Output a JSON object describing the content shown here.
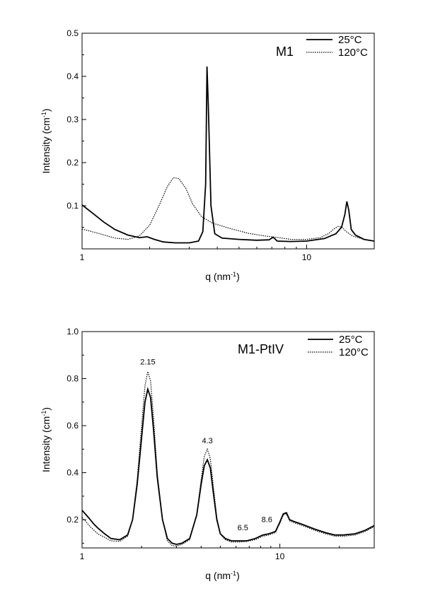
{
  "chart_data": [
    {
      "type": "line",
      "title": "M1",
      "xlabel": "q (nm",
      "xlabel_sup": "-1",
      "xlabel_end": ")",
      "ylabel": "Intensity (cm",
      "ylabel_sup": "-1",
      "ylabel_end": ")",
      "xscale": "log",
      "xlim": [
        1,
        20
      ],
      "ylim": [
        0,
        0.5
      ],
      "grid": false,
      "legend_position": "top-right",
      "x_ticks": [
        {
          "value": 1,
          "label": "1"
        },
        {
          "value": 10,
          "label": "10"
        }
      ],
      "y_ticks": [
        {
          "value": 0.1,
          "label": "0.1"
        },
        {
          "value": 0.2,
          "label": "0.2"
        },
        {
          "value": 0.3,
          "label": "0.3"
        },
        {
          "value": 0.4,
          "label": "0.4"
        },
        {
          "value": 0.5,
          "label": "0.5"
        }
      ],
      "annotations": [],
      "series": [
        {
          "name": "25°C",
          "style": "solid",
          "x": [
            1.0,
            1.1,
            1.25,
            1.4,
            1.6,
            1.8,
            1.95,
            2.1,
            2.3,
            2.6,
            3.0,
            3.3,
            3.45,
            3.55,
            3.6,
            3.65,
            3.75,
            3.9,
            4.2,
            5.0,
            6.0,
            6.8,
            7.1,
            7.4,
            8.5,
            10.0,
            12.0,
            13.5,
            14.3,
            14.8,
            15.1,
            15.4,
            15.8,
            16.5,
            18.0,
            20.0
          ],
          "y": [
            0.102,
            0.085,
            0.062,
            0.045,
            0.032,
            0.026,
            0.028,
            0.022,
            0.016,
            0.014,
            0.014,
            0.018,
            0.04,
            0.15,
            0.423,
            0.33,
            0.1,
            0.035,
            0.025,
            0.022,
            0.02,
            0.021,
            0.027,
            0.018,
            0.017,
            0.018,
            0.024,
            0.035,
            0.05,
            0.08,
            0.11,
            0.09,
            0.045,
            0.032,
            0.022,
            0.018
          ]
        },
        {
          "name": "120°C",
          "style": "dotted",
          "x": [
            1.0,
            1.2,
            1.4,
            1.6,
            1.8,
            2.0,
            2.2,
            2.4,
            2.55,
            2.7,
            2.9,
            3.1,
            3.4,
            3.8,
            4.5,
            5.5,
            6.5,
            7.5,
            8.5,
            10.0,
            11.5,
            12.5,
            13.3,
            13.8,
            14.4,
            15.0,
            16.0,
            18.0,
            20.0
          ],
          "y": [
            0.046,
            0.035,
            0.025,
            0.022,
            0.03,
            0.055,
            0.1,
            0.145,
            0.165,
            0.163,
            0.14,
            0.105,
            0.075,
            0.06,
            0.048,
            0.036,
            0.03,
            0.026,
            0.022,
            0.022,
            0.026,
            0.035,
            0.047,
            0.052,
            0.05,
            0.04,
            0.03,
            0.022,
            0.018
          ]
        }
      ]
    },
    {
      "type": "line",
      "title": "M1-PtIV",
      "xlabel": "q (nm",
      "xlabel_sup": "-1",
      "xlabel_end": ")",
      "ylabel": "Intensity (cm",
      "ylabel_sup": "-1",
      "ylabel_end": ")",
      "xscale": "log",
      "xlim": [
        1,
        30
      ],
      "ylim": [
        0.08,
        1.0
      ],
      "grid": false,
      "legend_position": "top-right",
      "x_ticks": [
        {
          "value": 1,
          "label": "1"
        },
        {
          "value": 10,
          "label": "10"
        }
      ],
      "y_ticks": [
        {
          "value": 0.2,
          "label": "0.2"
        },
        {
          "value": 0.4,
          "label": "0.4"
        },
        {
          "value": 0.6,
          "label": "0.6"
        },
        {
          "value": 0.8,
          "label": "0.8"
        },
        {
          "value": 1.0,
          "label": "1.0"
        }
      ],
      "annotations": [
        {
          "text": "2.15",
          "x": 2.15,
          "y": 0.86
        },
        {
          "text": "4.3",
          "x": 4.3,
          "y": 0.525
        },
        {
          "text": "6.5",
          "x": 6.5,
          "y": 0.155
        },
        {
          "text": "8.6",
          "x": 8.6,
          "y": 0.19
        }
      ],
      "series": [
        {
          "name": "25°C",
          "style": "solid",
          "x": [
            1.0,
            1.05,
            1.1,
            1.15,
            1.2,
            1.3,
            1.4,
            1.55,
            1.7,
            1.8,
            1.9,
            2.0,
            2.08,
            2.15,
            2.22,
            2.3,
            2.4,
            2.55,
            2.7,
            2.85,
            3.0,
            3.2,
            3.5,
            3.8,
            4.0,
            4.15,
            4.3,
            4.45,
            4.6,
            4.8,
            5.0,
            5.3,
            5.7,
            6.2,
            6.8,
            7.5,
            8.2,
            8.8,
            9.5,
            10.0,
            10.4,
            10.8,
            11.2,
            12.0,
            13.0,
            15.0,
            17.0,
            19.0,
            21.0,
            24.0,
            27.0,
            30.0
          ],
          "y": [
            0.24,
            0.22,
            0.2,
            0.18,
            0.165,
            0.14,
            0.12,
            0.115,
            0.135,
            0.2,
            0.35,
            0.55,
            0.7,
            0.755,
            0.72,
            0.58,
            0.38,
            0.2,
            0.12,
            0.1,
            0.095,
            0.1,
            0.12,
            0.22,
            0.35,
            0.43,
            0.455,
            0.42,
            0.32,
            0.2,
            0.14,
            0.12,
            0.11,
            0.11,
            0.11,
            0.12,
            0.135,
            0.14,
            0.15,
            0.19,
            0.225,
            0.23,
            0.2,
            0.19,
            0.18,
            0.16,
            0.145,
            0.135,
            0.135,
            0.14,
            0.155,
            0.175
          ]
        },
        {
          "name": "120°C",
          "style": "dotted",
          "x": [
            1.0,
            1.05,
            1.1,
            1.15,
            1.2,
            1.3,
            1.4,
            1.55,
            1.7,
            1.8,
            1.9,
            2.0,
            2.08,
            2.15,
            2.22,
            2.3,
            2.4,
            2.55,
            2.7,
            2.85,
            3.0,
            3.2,
            3.5,
            3.8,
            4.0,
            4.15,
            4.3,
            4.45,
            4.6,
            4.8,
            5.0,
            5.3,
            5.7,
            6.2,
            6.8,
            7.5,
            8.2,
            8.8,
            9.5,
            10.0,
            10.4,
            10.8,
            11.2,
            12.0,
            13.0,
            15.0,
            17.0,
            19.0,
            21.0,
            24.0,
            27.0,
            30.0
          ],
          "y": [
            0.21,
            0.19,
            0.17,
            0.155,
            0.14,
            0.125,
            0.11,
            0.108,
            0.13,
            0.2,
            0.37,
            0.6,
            0.77,
            0.83,
            0.79,
            0.63,
            0.4,
            0.2,
            0.11,
            0.09,
            0.088,
            0.095,
            0.115,
            0.22,
            0.37,
            0.47,
            0.5,
            0.46,
            0.35,
            0.21,
            0.14,
            0.115,
            0.105,
            0.105,
            0.108,
            0.115,
            0.13,
            0.135,
            0.145,
            0.185,
            0.22,
            0.225,
            0.195,
            0.185,
            0.175,
            0.155,
            0.14,
            0.13,
            0.13,
            0.135,
            0.15,
            0.17
          ]
        }
      ]
    }
  ]
}
